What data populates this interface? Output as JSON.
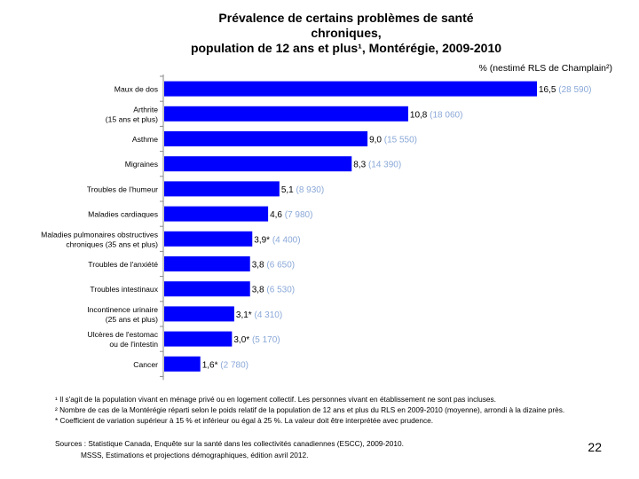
{
  "header": {
    "title_lines": [
      "Prévalence de certains problèmes de santé",
      "chroniques,",
      "population de 12 ans et plus¹, Montérégie, 2009-2010"
    ],
    "unit_note": "% (nestimé  RLS de Champlain²)"
  },
  "colors": {
    "bar": "#0000ff",
    "value": "#000000",
    "count": "#8aa8d8",
    "axis": "#888888"
  },
  "chart_data": {
    "type": "bar",
    "orientation": "horizontal",
    "title": "Prévalence de certains problèmes de santé chroniques, population de 12 ans et plus¹, Montérégie, 2009-2010",
    "xlabel": "% (nestimé  RLS de Champlain²)",
    "ylabel": "",
    "xlim": [
      0,
      17
    ],
    "grid": false,
    "legend": "none",
    "categories": [
      [
        "Maux de dos"
      ],
      [
        "Arthrite",
        "(15 ans et plus)"
      ],
      [
        "Asthme"
      ],
      [
        "Migraines"
      ],
      [
        "Troubles de l'humeur"
      ],
      [
        "Maladies cardiaques"
      ],
      [
        "Maladies pulmonaires obstructives",
        "chroniques (35 ans et plus)"
      ],
      [
        "Troubles de l'anxiété"
      ],
      [
        "Troubles intestinaux"
      ],
      [
        "Incontinence urinaire",
        "(25 ans et plus)"
      ],
      [
        "Ulcères de l'estomac",
        "ou de l'intestin"
      ],
      [
        "Cancer"
      ]
    ],
    "values": [
      16.5,
      10.8,
      9.0,
      8.3,
      5.1,
      4.6,
      3.9,
      3.8,
      3.8,
      3.1,
      3.0,
      1.6
    ],
    "value_labels": [
      "16,5",
      "10,8",
      "9,0",
      "8,3",
      "5,1",
      "4,6",
      "3,9*",
      "3,8",
      "3,8",
      "3,1*",
      "3,0*",
      "1,6*"
    ],
    "count_labels": [
      "(28 590)",
      "(18 060)",
      "(15 550)",
      "(14 390)",
      "(8 930)",
      "(7 980)",
      "(4 400)",
      "(6 650)",
      "(6 530)",
      "(4 310)",
      "(5 170)",
      "(2 780)"
    ]
  },
  "footnotes": [
    "¹ Il s'agit de la population vivant en ménage privé ou en logement collectif. Les personnes vivant en établissement ne sont pas incluses.",
    "² Nombre de cas de la Montérégie réparti selon le poids relatif de la population de 12 ans et plus du RLS en 2009-2010 (moyenne), arrondi à la dizaine près.",
    "* Coefficient de variation supérieur à 15 % et inférieur ou égal à 25 %. La valeur doit être interprétée avec prudence."
  ],
  "sources": [
    "Sources : Statistique Canada, Enquête sur la santé dans les collectivités canadiennes (ESCC), 2009-2010.",
    "MSSS, Estimations et projections démographiques, édition avril 2012."
  ],
  "page_number": "22"
}
